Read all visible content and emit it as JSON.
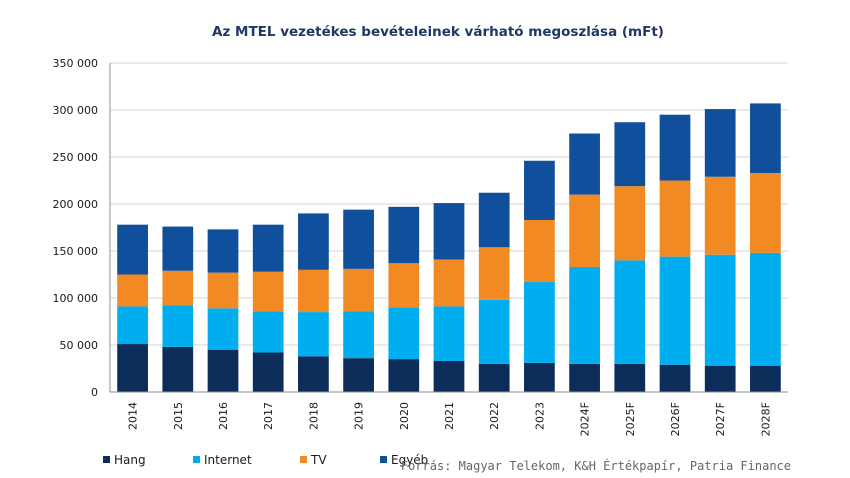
{
  "chart_data": {
    "type": "bar",
    "stacked": true,
    "title": "Az MTEL vezetékes bevételeinek várható megoszlása (mFt)",
    "categories": [
      "2014",
      "2015",
      "2016",
      "2017",
      "2018",
      "2019",
      "2020",
      "2021",
      "2022",
      "2023",
      "2024F",
      "2025F",
      "2026F",
      "2027F",
      "2028F"
    ],
    "series": [
      {
        "name": "Hang",
        "color": "#0c2d5a",
        "values": [
          51000,
          48000,
          45000,
          42000,
          38000,
          36000,
          35000,
          33000,
          30000,
          31000,
          30000,
          30000,
          29000,
          28000,
          28000
        ]
      },
      {
        "name": "Internet",
        "color": "#00aeef",
        "values": [
          40000,
          44000,
          44000,
          44000,
          47000,
          50000,
          55000,
          58000,
          68000,
          86000,
          103000,
          110000,
          115000,
          118000,
          120000
        ]
      },
      {
        "name": "TV",
        "color": "#f28a24",
        "values": [
          34000,
          37000,
          38000,
          42000,
          45000,
          45000,
          47000,
          50000,
          56000,
          66000,
          77000,
          79000,
          81000,
          83000,
          85000
        ]
      },
      {
        "name": "Egyéb",
        "color": "#0f4f9c",
        "values": [
          53000,
          47000,
          46000,
          50000,
          60000,
          63000,
          60000,
          60000,
          58000,
          63000,
          65000,
          68000,
          70000,
          72000,
          74000
        ]
      }
    ],
    "ylim": [
      0,
      350000
    ],
    "yticks": [
      0,
      50000,
      100000,
      150000,
      200000,
      250000,
      300000,
      350000
    ],
    "ytick_labels": [
      "0",
      "50 000",
      "100 000",
      "150 000",
      "200 000",
      "250 000",
      "300 000",
      "350 000"
    ],
    "grid": true,
    "legend_position": "bottom-left",
    "xlabel": "",
    "ylabel": ""
  },
  "source_note": "Forrás: Magyar Telekom, K&H Értékpapír, Patria Finance"
}
